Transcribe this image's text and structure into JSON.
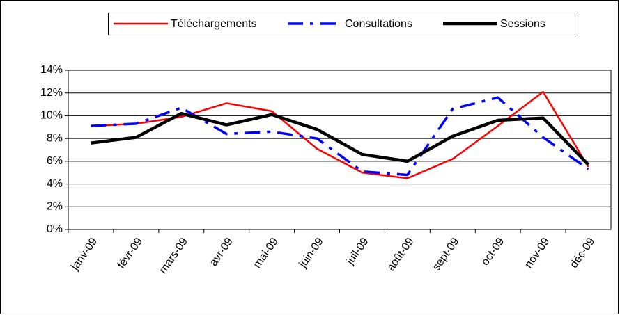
{
  "chart_data": {
    "type": "line",
    "categories": [
      "janv-09",
      "févr-09",
      "mars-09",
      "avr-09",
      "mai-09",
      "juin-09",
      "juil-09",
      "août-09",
      "sept-09",
      "oct-09",
      "nov-09",
      "déc-09"
    ],
    "series": [
      {
        "name": "Téléchargements",
        "color": "#ff0000",
        "line_style": "thin",
        "values": [
          9.1,
          9.3,
          9.9,
          11.1,
          10.4,
          7.1,
          5.0,
          4.5,
          6.2,
          9.1,
          12.1,
          5.5
        ]
      },
      {
        "name": "Consultations",
        "color": "#0000ff",
        "line_style": "dashed",
        "values": [
          9.1,
          9.3,
          10.7,
          8.4,
          8.6,
          8.0,
          5.1,
          4.8,
          10.6,
          11.6,
          8.1,
          5.3
        ]
      },
      {
        "name": "Sessions",
        "color": "#000000",
        "line_style": "thick",
        "values": [
          7.6,
          8.1,
          10.2,
          9.2,
          10.1,
          8.8,
          6.6,
          6.0,
          8.2,
          9.6,
          9.8,
          5.7
        ]
      }
    ],
    "ylim": [
      0,
      14
    ],
    "yticks": [
      {
        "value": 0,
        "label": "0%"
      },
      {
        "value": 2,
        "label": "2%"
      },
      {
        "value": 4,
        "label": "4%"
      },
      {
        "value": 6,
        "label": "6%"
      },
      {
        "value": 8,
        "label": "8%"
      },
      {
        "value": 10,
        "label": "10%"
      },
      {
        "value": 12,
        "label": "12%"
      },
      {
        "value": 14,
        "label": "14%"
      }
    ],
    "grid": true,
    "legend": "top"
  }
}
